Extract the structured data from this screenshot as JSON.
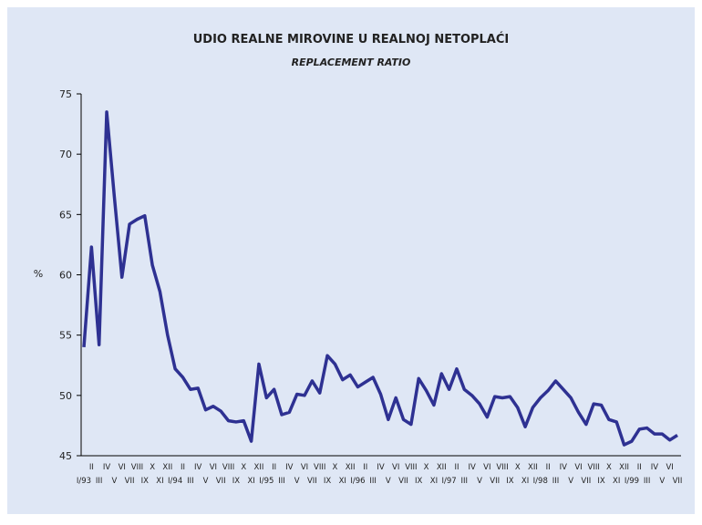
{
  "chart_data": {
    "type": "line",
    "title": "UDIO REALNE MIROVINE U REALNOJ NETOPLAĆI",
    "subtitle": "REPLACEMENT RATIO",
    "y_label": "%",
    "categories": [
      "I/93",
      "II",
      "III",
      "IV",
      "V",
      "VI",
      "VII",
      "VIII",
      "IX",
      "X",
      "XI",
      "XII",
      "I/94",
      "II",
      "III",
      "IV",
      "V",
      "VI",
      "VII",
      "VIII",
      "IX",
      "X",
      "XI",
      "XII",
      "I/95",
      "II",
      "III",
      "IV",
      "V",
      "VI",
      "VII",
      "VIII",
      "IX",
      "X",
      "XI",
      "XII",
      "I/96",
      "II",
      "III",
      "IV",
      "V",
      "VI",
      "VII",
      "VIII",
      "IX",
      "X",
      "XI",
      "XII",
      "I/97",
      "II",
      "III",
      "IV",
      "V",
      "VI",
      "VII",
      "VIII",
      "IX",
      "X",
      "XI",
      "XII",
      "I/98",
      "II",
      "III",
      "IV",
      "V",
      "VI",
      "VII",
      "VIII",
      "IX",
      "X",
      "XI",
      "XII",
      "I/99",
      "II",
      "III",
      "IV",
      "V",
      "VI",
      "VII"
    ],
    "series": [
      {
        "color": "#2e3192",
        "values": [
          54.0,
          62.3,
          54.2,
          73.5,
          66.5,
          59.8,
          64.2,
          64.6,
          64.9,
          60.8,
          58.6,
          55.0,
          52.2,
          51.5,
          50.5,
          50.6,
          48.8,
          49.1,
          48.7,
          47.9,
          47.8,
          47.9,
          46.2,
          52.6,
          49.8,
          50.5,
          48.4,
          48.6,
          50.1,
          50.0,
          51.2,
          50.2,
          53.3,
          52.6,
          51.3,
          51.7,
          50.7,
          51.1,
          51.5,
          50.1,
          48.0,
          49.8,
          48.0,
          47.6,
          51.4,
          50.4,
          49.2,
          51.8,
          50.5,
          52.2,
          50.5,
          50.0,
          49.3,
          48.2,
          49.9,
          49.8,
          49.9,
          49.0,
          47.4,
          49.0,
          49.8,
          50.4,
          51.2,
          50.5,
          49.8,
          48.6,
          47.6,
          49.3,
          49.2,
          48.0,
          47.8,
          45.9,
          46.2,
          47.2,
          47.3,
          46.8,
          46.8,
          46.3,
          46.7
        ]
      }
    ],
    "ylim": [
      45,
      75
    ],
    "yticks": [
      45,
      50,
      55,
      60,
      65,
      70,
      75
    ],
    "grid": false
  }
}
